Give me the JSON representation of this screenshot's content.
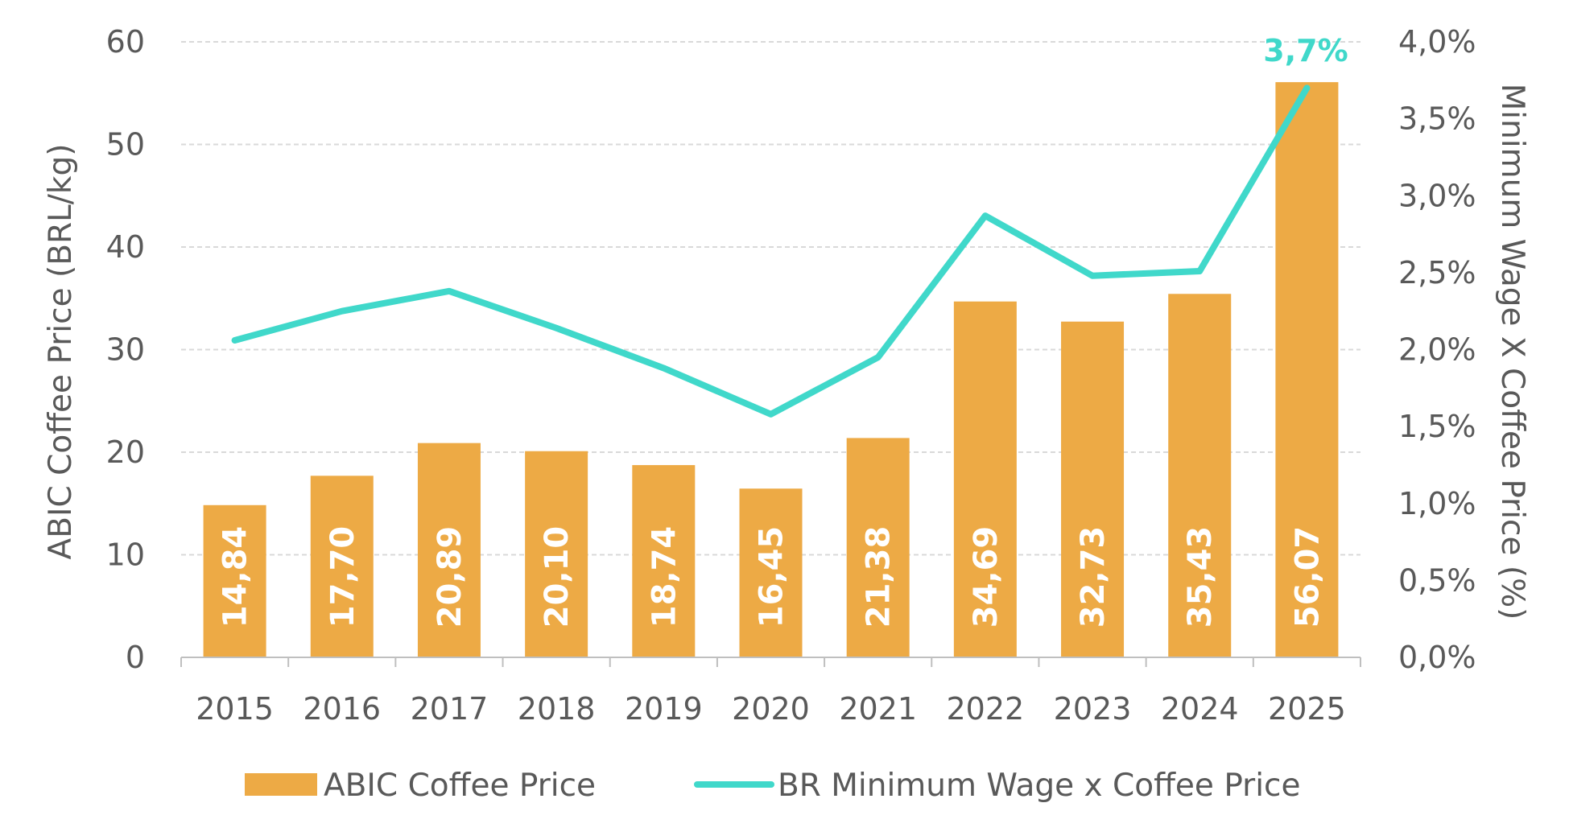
{
  "chart_data": {
    "type": "bar",
    "categories": [
      "2015",
      "2016",
      "2017",
      "2018",
      "2019",
      "2020",
      "2021",
      "2022",
      "2023",
      "2024",
      "2025"
    ],
    "series": [
      {
        "name": "ABIC Coffee Price",
        "axis": "left",
        "type": "bar",
        "values": [
          14.84,
          17.7,
          20.89,
          20.1,
          18.74,
          16.45,
          21.38,
          34.69,
          32.73,
          35.43,
          56.07
        ],
        "labels": [
          "14,84",
          "17,70",
          "20,89",
          "20,10",
          "18,74",
          "16,45",
          "21,38",
          "34,69",
          "32,73",
          "35,43",
          "56,07"
        ]
      },
      {
        "name": "BR Minimum Wage x Coffee Price",
        "axis": "right",
        "type": "line",
        "values": [
          2.06,
          2.25,
          2.38,
          2.14,
          1.88,
          1.58,
          1.95,
          2.87,
          2.48,
          2.51,
          3.7
        ]
      }
    ],
    "ylabel": "ABIC Coffee Price (BRL/kg)",
    "y2label": "Minimum Wage X Coffee Price (%)",
    "ylim": [
      0,
      60
    ],
    "yticks": [
      "0",
      "10",
      "20",
      "30",
      "40",
      "50",
      "60"
    ],
    "y2lim": [
      0,
      4.0
    ],
    "y2ticks": [
      "0,0%",
      "0,5%",
      "1,0%",
      "1,5%",
      "2,0%",
      "2,5%",
      "3,0%",
      "3,5%",
      "4,0%"
    ],
    "annotation": "3,7%",
    "grid": true,
    "legend_position": "bottom",
    "colors": {
      "bar": "#EDAA45",
      "line": "#40D8CA",
      "text": "#595959",
      "grid": "#D9D9D9",
      "axis": "#BFBFBF"
    }
  }
}
